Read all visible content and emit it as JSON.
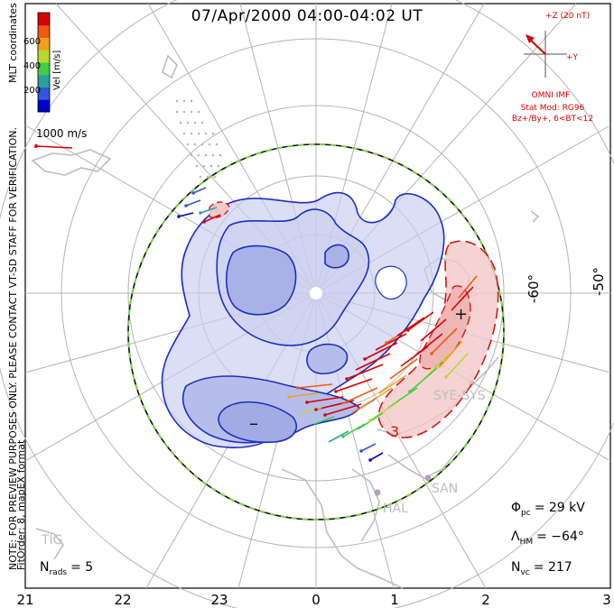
{
  "title": "07/Apr/2000 04:00-04:02 UT",
  "side_note_line1": "NOTE: FOR PREVIEW PURPOSES ONLY. PLEASE CONTACT VT-SD STAFF FOR VERIFICATION.",
  "side_note_line2": "FitOrder: 8, mapEX format",
  "coord_label": "MLT coordinates",
  "colorbar": {
    "label": "Vel [m/s]",
    "ticks": [
      "600",
      "400",
      "200"
    ],
    "colors": [
      "#0000c8",
      "#3355d8",
      "#2aa0a0",
      "#44cc44",
      "#b8d830",
      "#f0a020",
      "#ee5a10",
      "#d80000"
    ]
  },
  "ref_vector_label": "1000 m/s",
  "imf": {
    "scale_label": "+Z (20 nT)",
    "y_label": "+Y",
    "source": "OMNI IMF",
    "model_line1": "Stat Mod: RG96",
    "model_line2": "Bz+/By+, 6<BT<12"
  },
  "lat_labels": [
    "-60°",
    "-50°"
  ],
  "mlt_labels": [
    "21",
    "22",
    "23",
    "0",
    "1",
    "2",
    "3"
  ],
  "radar_labels": [
    "SYE-SYS",
    "SAN",
    "HAL",
    "TIG"
  ],
  "potential_labels": {
    "min": "–",
    "max": "+",
    "contour": "3"
  },
  "n_rads": {
    "symbol": "N",
    "sub": "rads",
    "value": "= 5"
  },
  "phi_pc": {
    "symbol": "Φ",
    "sub": "pc",
    "value": "= 29 kV"
  },
  "lambda_hm": {
    "symbol": "Λ",
    "sub": "HM",
    "value": "= −64°"
  },
  "n_vc": {
    "symbol": "N",
    "sub": "vc",
    "value": "= 217"
  },
  "colors": {
    "negative_fill": "#c8cdee",
    "negative_line": "#1c2ec0",
    "positive_fill": "#f3c8c8",
    "positive_line": "#d01818",
    "boundary_green": "#7fd04a",
    "coast": "#bdbdbd",
    "grid": "#b4b4b4"
  }
}
